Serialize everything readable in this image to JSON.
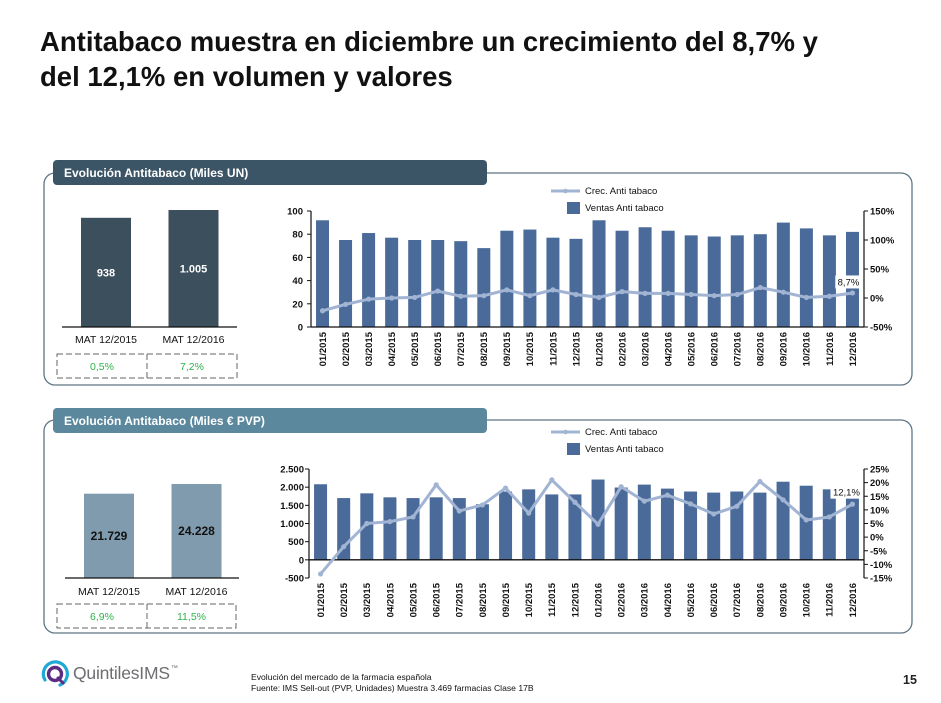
{
  "slide": {
    "title_line1": "Antitabaco muestra en diciembre un crecimiento del 8,7% y",
    "title_line2": "del 12,1% en volumen y valores",
    "page_number": "15"
  },
  "panels": {
    "units": {
      "title": "Evolución Antitabaco (Miles UN)"
    },
    "values": {
      "title": "Evolución Antitabaco (Miles € PVP)"
    }
  },
  "footer": {
    "line1": "Evolución del mercado de la farmacia española",
    "line2": "Fuente: IMS Sell-out  (PVP, Unidades) Muestra 3.469  farmacias Clase 17B"
  },
  "logo": {
    "name": "QuintilesIMS",
    "trademark": "™",
    "icon": "quintiles-q-icon"
  },
  "colors": {
    "bar": "#4a6a99",
    "line": "#a1b4d3",
    "tab_units": "#3c5566",
    "tab_values": "#5b889d",
    "mini_units": "#3c4f5c",
    "mini_values": "#7f9bad",
    "growth_text": "#2fb34a",
    "frame": "#5d7585"
  },
  "chart_data": [
    {
      "type": "bar",
      "title": "Evolución Antitabaco (Miles UN) - MAT",
      "categories": [
        "MAT 12/2015",
        "MAT 12/2016"
      ],
      "values": [
        938,
        1005
      ],
      "value_labels": [
        "938",
        "1.005"
      ],
      "growth_labels": [
        "0,5%",
        "7,2%"
      ]
    },
    {
      "type": "bar+line",
      "title": "Evolución Antitabaco (Miles UN) - mensual",
      "categories": [
        "01/2015",
        "02/2015",
        "03/2015",
        "04/2015",
        "05/2015",
        "06/2015",
        "07/2015",
        "08/2015",
        "09/2015",
        "10/2015",
        "11/2015",
        "12/2015",
        "01/2016",
        "02/2016",
        "03/2016",
        "04/2016",
        "05/2016",
        "06/2016",
        "07/2016",
        "08/2016",
        "09/2016",
        "10/2016",
        "11/2016",
        "12/2016"
      ],
      "series": [
        {
          "name": "Ventas Anti tabaco",
          "type": "bar",
          "axis": "left",
          "values": [
            92,
            75,
            81,
            77,
            75,
            75,
            74,
            68,
            83,
            84,
            77,
            76,
            92,
            83,
            86,
            83,
            79,
            78,
            79,
            80,
            90,
            85,
            79,
            82
          ]
        },
        {
          "name": "Crec. Anti tabaco",
          "type": "line",
          "axis": "right",
          "unit": "%",
          "values": [
            -22,
            -11,
            -2,
            0,
            1,
            12,
            3,
            4,
            14,
            4,
            14,
            6,
            1,
            11,
            8,
            8,
            6,
            4,
            6,
            18,
            10,
            1,
            3,
            8.7
          ]
        }
      ],
      "left_axis": {
        "range": [
          0,
          100
        ],
        "ticks": [
          0,
          20,
          40,
          60,
          80,
          100
        ],
        "tick_labels": [
          "0",
          "20",
          "40",
          "60",
          "80",
          "100"
        ]
      },
      "right_axis": {
        "range": [
          -50,
          150
        ],
        "ticks": [
          -50,
          0,
          50,
          100,
          150
        ],
        "tick_labels": [
          "-50%",
          "0%",
          "50%",
          "100%",
          "150%"
        ]
      },
      "annotations": [
        {
          "category": "12/2016",
          "series": "Crec. Anti tabaco",
          "text": "8,7%"
        }
      ],
      "legend": "top-right",
      "grid": false
    },
    {
      "type": "bar",
      "title": "Evolución Antitabaco (Miles € PVP) - MAT",
      "categories": [
        "MAT 12/2015",
        "MAT 12/2016"
      ],
      "values": [
        21729,
        24228
      ],
      "value_labels": [
        "21.729",
        "24.228"
      ],
      "growth_labels": [
        "6,9%",
        "11,5%"
      ]
    },
    {
      "type": "bar+line",
      "title": "Evolución Antitabaco (Miles € PVP) - mensual",
      "categories": [
        "01/2015",
        "02/2015",
        "03/2015",
        "04/2015",
        "05/2015",
        "06/2015",
        "07/2015",
        "08/2015",
        "09/2015",
        "10/2015",
        "11/2015",
        "12/2015",
        "01/2016",
        "02/2016",
        "03/2016",
        "04/2016",
        "05/2016",
        "06/2016",
        "07/2016",
        "08/2016",
        "09/2016",
        "10/2016",
        "11/2016",
        "12/2016"
      ],
      "series": [
        {
          "name": "Ventas Anti tabaco",
          "type": "bar",
          "axis": "left",
          "values": [
            2080,
            1700,
            1830,
            1720,
            1700,
            1720,
            1700,
            1530,
            1880,
            1940,
            1800,
            1800,
            2210,
            1990,
            2070,
            1960,
            1880,
            1850,
            1880,
            1850,
            2150,
            2040,
            1940,
            2010
          ]
        },
        {
          "name": "Crec. Anti tabaco",
          "type": "line",
          "axis": "right",
          "unit": "%",
          "values": [
            -13.5,
            -3.5,
            5,
            5.7,
            7.4,
            19.2,
            9.6,
            11.8,
            18,
            8.8,
            21,
            12.8,
            4.7,
            18.5,
            13.2,
            15.4,
            12.2,
            8.5,
            11.3,
            20.4,
            13.7,
            6.3,
            7.4,
            12.1
          ]
        }
      ],
      "left_axis": {
        "range": [
          -500,
          2500
        ],
        "ticks": [
          -500,
          0,
          500,
          1000,
          1500,
          2000,
          2500
        ],
        "tick_labels": [
          "-500",
          "0",
          "500",
          "1.000",
          "1.500",
          "2.000",
          "2.500"
        ]
      },
      "right_axis": {
        "range": [
          -15,
          25
        ],
        "ticks": [
          -15,
          -10,
          -5,
          0,
          5,
          10,
          15,
          20,
          25
        ],
        "tick_labels": [
          "-15%",
          "-10%",
          "-5%",
          "0%",
          "5%",
          "10%",
          "15%",
          "20%",
          "25%"
        ]
      },
      "annotations": [
        {
          "category": "12/2016",
          "series": "Crec. Anti tabaco",
          "text": "12,1%"
        }
      ],
      "legend": "top-right",
      "grid": false
    }
  ]
}
